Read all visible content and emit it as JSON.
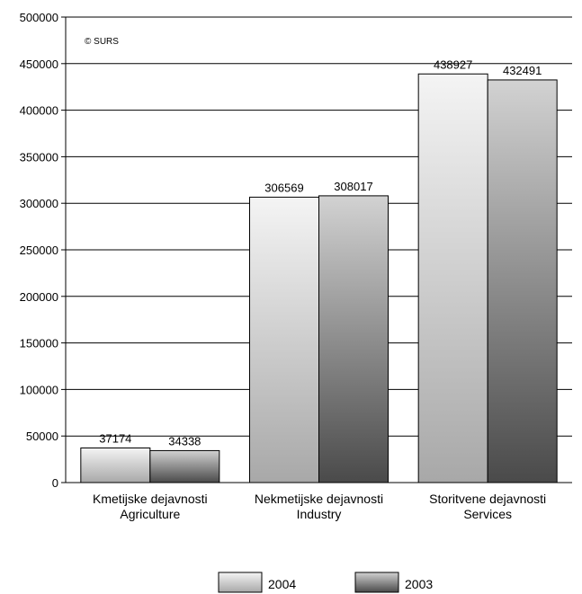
{
  "chart_data": {
    "type": "bar",
    "source_note": "© SURS",
    "categories": [
      [
        "Kmetijske dejavnosti",
        "Agriculture"
      ],
      [
        "Nekmetijske dejavnosti",
        "Industry"
      ],
      [
        "Storitvene dejavnosti",
        "Services"
      ]
    ],
    "series": [
      {
        "name": "2004",
        "values": [
          37174,
          306569,
          438927
        ],
        "gradient": [
          "#f4f4f4",
          "#a8a8a8"
        ]
      },
      {
        "name": "2003",
        "values": [
          34338,
          308017,
          432491
        ],
        "gradient": [
          "#d2d2d2",
          "#4a4a4a"
        ]
      }
    ],
    "ylim": [
      0,
      500000
    ],
    "yticks": [
      0,
      50000,
      100000,
      150000,
      200000,
      250000,
      300000,
      350000,
      400000,
      450000,
      500000
    ],
    "grid": true,
    "legend_position": "bottom"
  }
}
